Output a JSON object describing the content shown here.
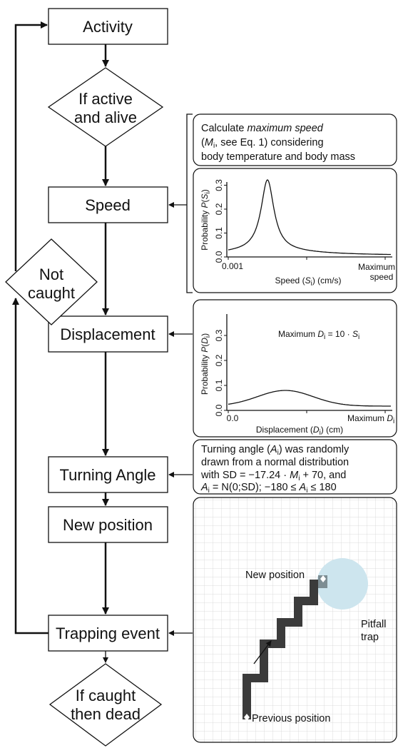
{
  "nodes": {
    "activity": "Activity",
    "active_check": [
      "If active",
      "and alive"
    ],
    "speed": "Speed",
    "displacement": "Displacement",
    "not_caught": [
      "Not",
      "caught"
    ],
    "turning_angle": "Turning Angle",
    "new_position": "New position",
    "trapping_event": "Trapping event",
    "caught_check": [
      "If caught",
      "then dead"
    ]
  },
  "speed_note": {
    "line1": [
      "Calculate ",
      "maximum speed"
    ],
    "line2": [
      "(",
      "M",
      "i",
      ", see Eq. 1) considering"
    ],
    "line3": "body temperature and body mass"
  },
  "speed_plot": {
    "y_label": [
      "Probability ",
      "P",
      "(",
      "S",
      "i",
      ")"
    ],
    "yticks": [
      "0.0",
      "0.1",
      "0.2",
      "0.3"
    ],
    "xticks": [
      "0.001",
      [
        "Maximum",
        "speed"
      ]
    ],
    "x_label": [
      "Speed (",
      "S",
      "i",
      ") (cm/s)"
    ]
  },
  "displacement_plot": {
    "note": [
      "Maximum ",
      "D",
      "i",
      " = 10 · ",
      "S",
      "i"
    ],
    "y_label": [
      "Probability ",
      "P",
      "(",
      "D",
      "i",
      ")"
    ],
    "yticks": [
      "0.0",
      "0.1",
      "0.2",
      "0.3"
    ],
    "xticks": [
      "0.0",
      [
        "Maximum ",
        "D",
        "i"
      ]
    ],
    "x_label": [
      "Displacement (",
      "D",
      "i",
      ") (cm)"
    ]
  },
  "turning_note": {
    "line1": [
      "Turning angle (",
      "A",
      "i",
      ") was randomly"
    ],
    "line2": "drawn from a normal distribution",
    "line3": [
      "with SD = −17.24 · ",
      "M",
      "i",
      " + 70, and"
    ],
    "line4": [
      "A",
      "i",
      " = N(0;SD); −180 ≤ ",
      "A",
      "i",
      " ≤ 180"
    ]
  },
  "trap_panel": {
    "new_position": "New position",
    "pitfall": [
      "Pitfall",
      "trap"
    ],
    "previous_position": "Previous position"
  }
}
